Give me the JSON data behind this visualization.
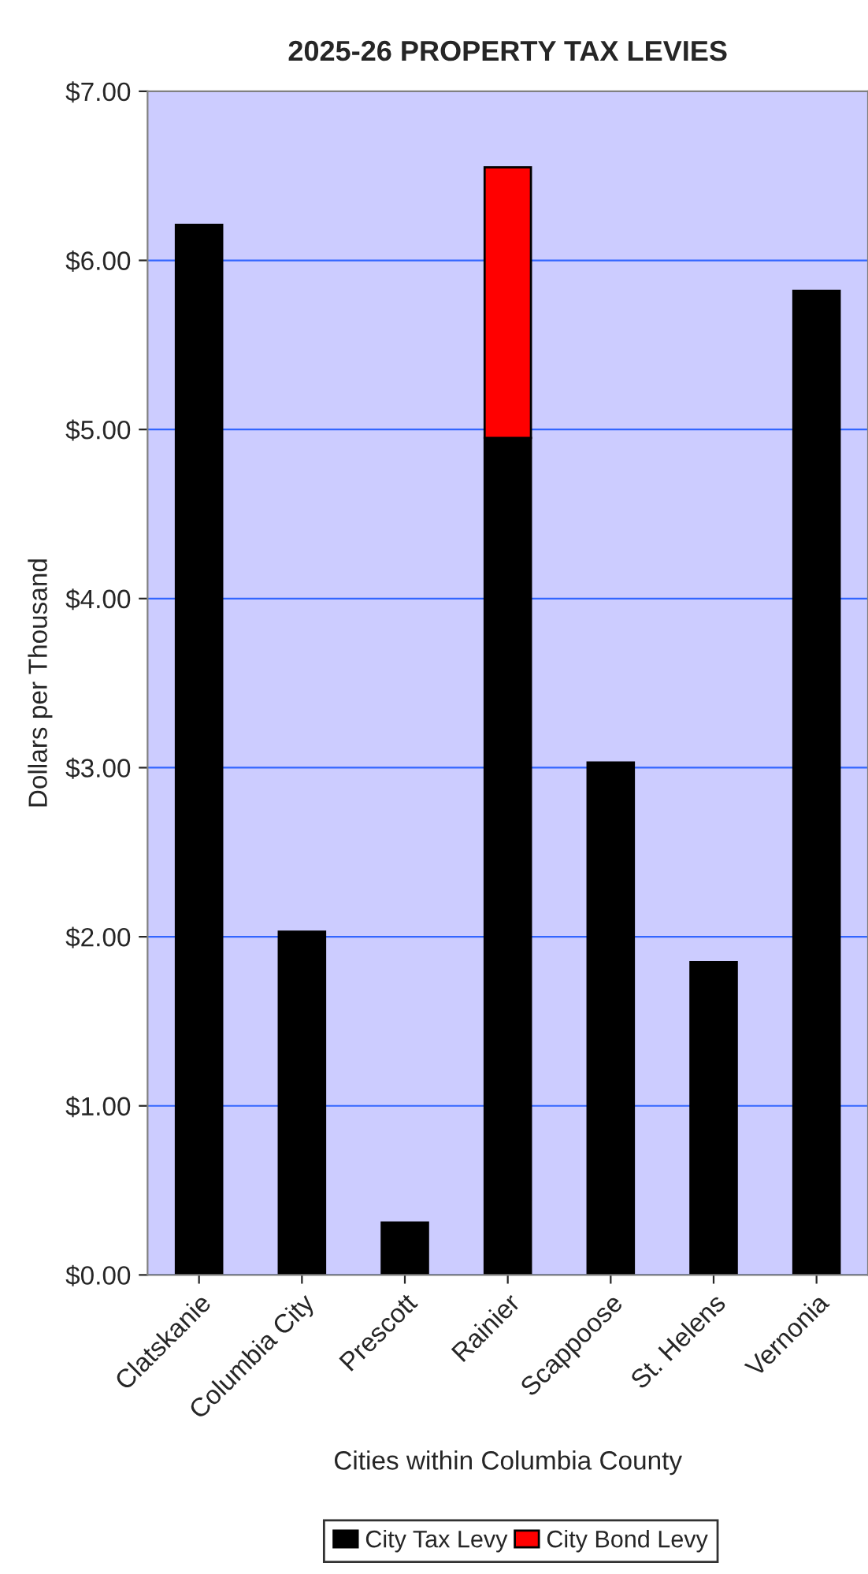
{
  "chart_data": {
    "type": "bar",
    "title": "2025-26 PROPERTY TAX LEVIES",
    "xlabel": "Cities within Columbia County",
    "ylabel": "Dollars per Thousand",
    "categories": [
      "Clatskanie",
      "Columbia City",
      "Prescott",
      "Rainier",
      "Scappoose",
      "St. Helens",
      "Vernonia"
    ],
    "stacked": true,
    "series": [
      {
        "name": "City Tax Levy",
        "color": "#000000",
        "values": [
          6.21,
          2.03,
          0.31,
          4.95,
          3.03,
          1.85,
          5.82
        ]
      },
      {
        "name": "City Bond Levy",
        "color": "#ff0000",
        "values": [
          null,
          null,
          null,
          1.6,
          null,
          null,
          null
        ]
      }
    ],
    "ylim": [
      0,
      7
    ],
    "yticks": [
      {
        "value": 0,
        "label": "$0.00"
      },
      {
        "value": 1,
        "label": "$1.00"
      },
      {
        "value": 2,
        "label": "$2.00"
      },
      {
        "value": 3,
        "label": "$3.00"
      },
      {
        "value": 4,
        "label": "$4.00"
      },
      {
        "value": 5,
        "label": "$5.00"
      },
      {
        "value": 6,
        "label": "$6.00"
      },
      {
        "value": 7,
        "label": "$7.00"
      }
    ],
    "grid": "y",
    "legend": "bottom"
  }
}
